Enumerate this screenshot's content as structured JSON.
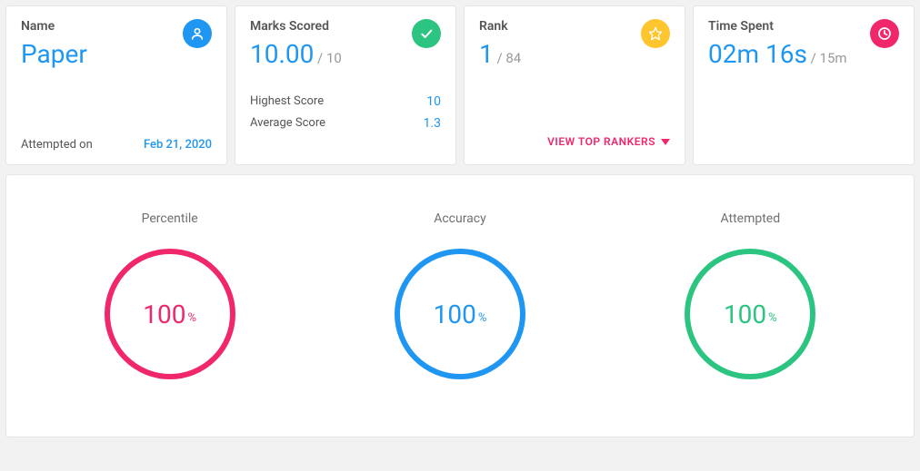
{
  "colors": {
    "blue": "#1e96f2",
    "green": "#2bc480",
    "green_ring": "#2bc480",
    "yellow": "#ffc52f",
    "pink": "#f1276c",
    "grey_text": "#707070",
    "grey_sub": "#999999",
    "ring_track": "#f0f0f0"
  },
  "cards": {
    "name": {
      "label": "Name",
      "value": "Paper",
      "value_color": "#1e96f2",
      "icon_bg": "#1e96f2",
      "attempted_label": "Attempted on",
      "attempted_date": "Feb 21, 2020"
    },
    "marks": {
      "label": "Marks Scored",
      "value": "10.00",
      "sub": " / 10",
      "value_color": "#1e96f2",
      "icon_bg": "#2bc480",
      "rows": [
        {
          "label": "Highest Score",
          "value": "10"
        },
        {
          "label": "Average Score",
          "value": "1.3"
        }
      ]
    },
    "rank": {
      "label": "Rank",
      "value": "1",
      "sub": " / 84",
      "value_color": "#1e96f2",
      "icon_bg": "#ffc52f",
      "link_text": "VIEW TOP RANKERS"
    },
    "time": {
      "label": "Time Spent",
      "value": "02m 16s",
      "sub": " / 15m",
      "value_color": "#1e96f2",
      "icon_bg": "#f1276c"
    }
  },
  "metrics": [
    {
      "title": "Percentile",
      "value": 100,
      "color": "#f1276c"
    },
    {
      "title": "Accuracy",
      "value": 100,
      "color": "#1e96f2"
    },
    {
      "title": "Attempted",
      "value": 100,
      "color": "#2bc480"
    }
  ],
  "ring": {
    "size": 150,
    "stroke": 6,
    "track_color": "#f5f5f5",
    "pct_symbol": "%"
  }
}
